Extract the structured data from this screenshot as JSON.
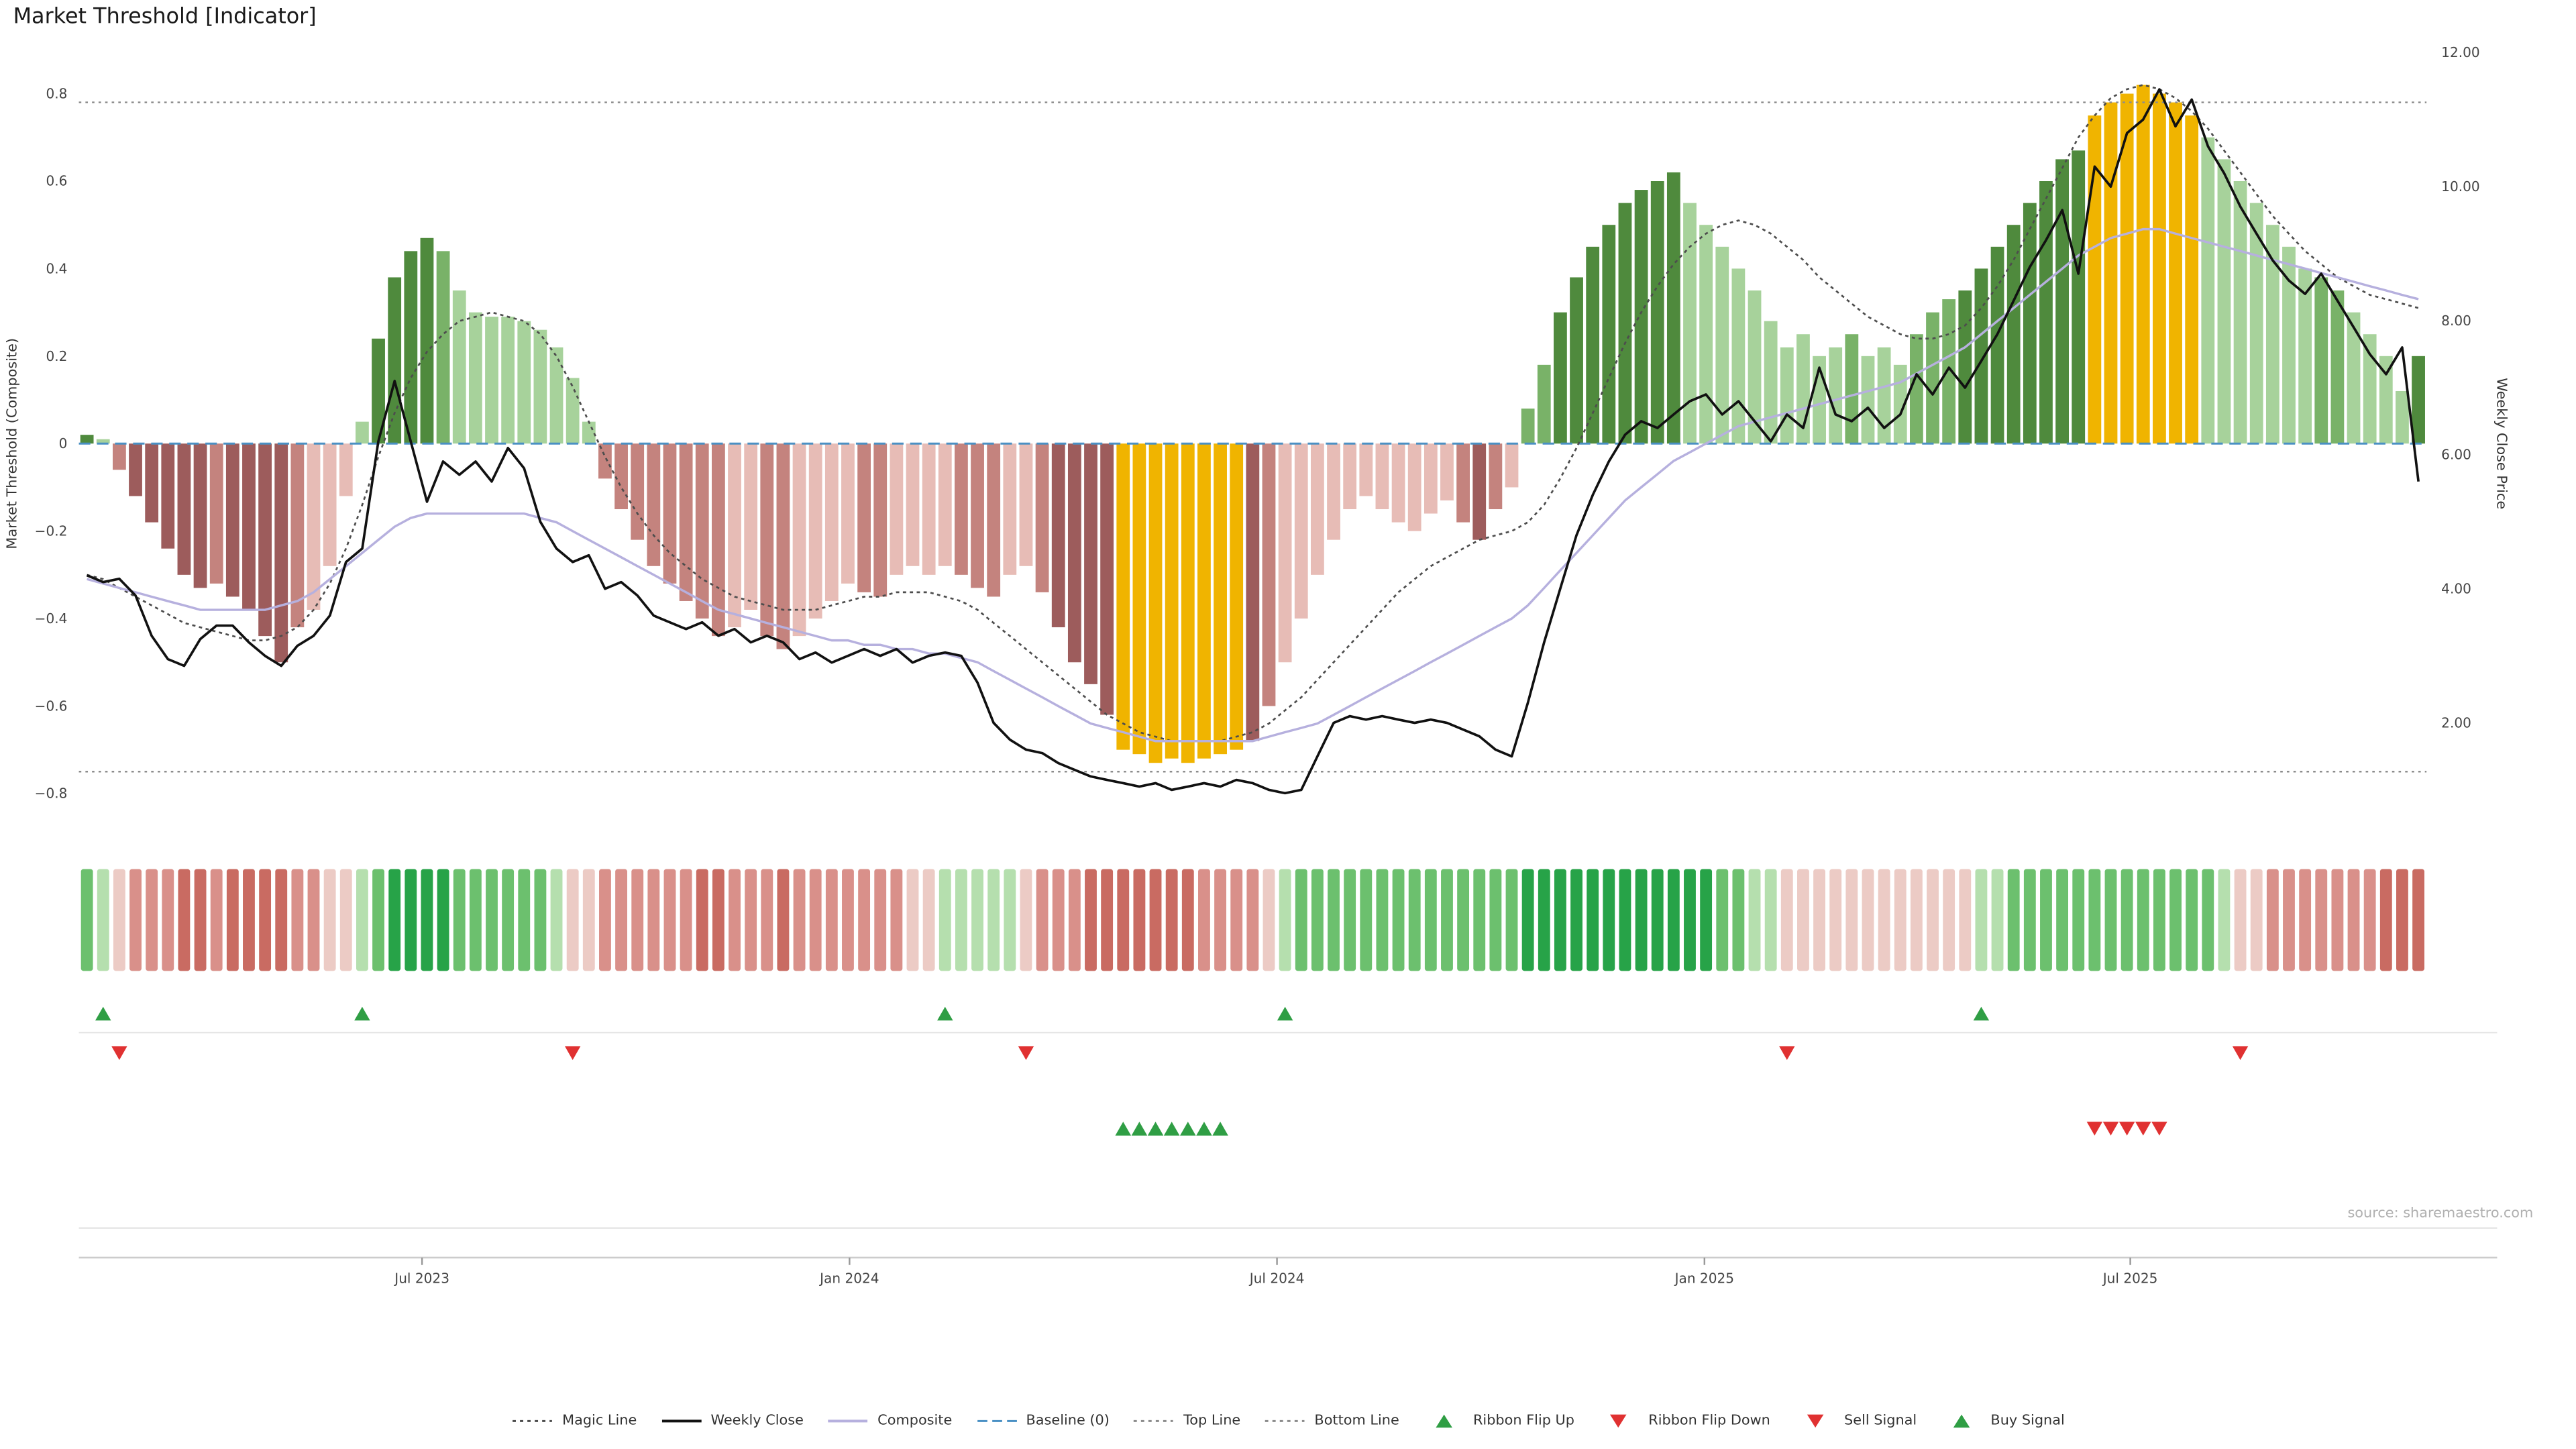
{
  "title": "Market Threshold [Indicator]",
  "source": "source: sharemaestro.com",
  "axes": {
    "left_label": "Market Threshold (Composite)",
    "right_label": "Weekly Close Price",
    "left_ticks": [
      {
        "label": "0.8",
        "value": 0.8
      },
      {
        "label": "0.6",
        "value": 0.6
      },
      {
        "label": "0.4",
        "value": 0.4
      },
      {
        "label": "0.2",
        "value": 0.2
      },
      {
        "label": "0",
        "value": 0
      },
      {
        "label": "−0.2",
        "value": -0.2
      },
      {
        "label": "−0.4",
        "value": -0.4
      },
      {
        "label": "−0.6",
        "value": -0.6
      },
      {
        "label": "−0.8",
        "value": -0.8
      }
    ],
    "right_ticks": [
      {
        "label": "12.00",
        "value": 12
      },
      {
        "label": "10.00",
        "value": 10
      },
      {
        "label": "8.00",
        "value": 8
      },
      {
        "label": "6.00",
        "value": 6
      },
      {
        "label": "4.00",
        "value": 4
      },
      {
        "label": "2.00",
        "value": 2
      }
    ],
    "x_ticks": [
      {
        "label": "Jul 2023",
        "index": 20.7
      },
      {
        "label": "Jan 2024",
        "index": 47.1
      },
      {
        "label": "Jul 2024",
        "index": 73.5
      },
      {
        "label": "Jan 2025",
        "index": 99.9
      },
      {
        "label": "Jul 2025",
        "index": 126.2
      }
    ]
  },
  "chart_data": {
    "type": "bar",
    "title": "Market Threshold [Indicator]",
    "ylim_left": [
      -0.9,
      0.91
    ],
    "ylim_right": [
      0.2,
      12.1
    ],
    "reference_lines": {
      "baseline": 0,
      "top_line": 0.78,
      "bottom_line": -0.75
    },
    "threshold_bars": {
      "name": "Market Threshold (Composite)",
      "axis": "left",
      "values": [
        0.02,
        0.01,
        -0.06,
        -0.12,
        -0.18,
        -0.24,
        -0.3,
        -0.33,
        -0.32,
        -0.35,
        -0.38,
        -0.44,
        -0.5,
        -0.42,
        -0.38,
        -0.28,
        -0.12,
        0.05,
        0.24,
        0.38,
        0.44,
        0.47,
        0.44,
        0.35,
        0.3,
        0.29,
        0.29,
        0.28,
        0.26,
        0.22,
        0.15,
        0.05,
        -0.08,
        -0.15,
        -0.22,
        -0.28,
        -0.32,
        -0.36,
        -0.4,
        -0.44,
        -0.42,
        -0.38,
        -0.44,
        -0.47,
        -0.44,
        -0.4,
        -0.36,
        -0.32,
        -0.34,
        -0.35,
        -0.3,
        -0.28,
        -0.3,
        -0.28,
        -0.3,
        -0.33,
        -0.35,
        -0.3,
        -0.28,
        -0.34,
        -0.42,
        -0.5,
        -0.55,
        -0.62,
        -0.7,
        -0.71,
        -0.73,
        -0.72,
        -0.73,
        -0.72,
        -0.71,
        -0.7,
        -0.68,
        -0.6,
        -0.5,
        -0.4,
        -0.3,
        -0.22,
        -0.15,
        -0.12,
        -0.15,
        -0.18,
        -0.2,
        -0.16,
        -0.13,
        -0.18,
        -0.22,
        -0.15,
        -0.1,
        0.08,
        0.18,
        0.3,
        0.38,
        0.45,
        0.5,
        0.55,
        0.58,
        0.6,
        0.62,
        0.55,
        0.5,
        0.45,
        0.4,
        0.35,
        0.28,
        0.22,
        0.25,
        0.2,
        0.22,
        0.25,
        0.2,
        0.22,
        0.18,
        0.25,
        0.3,
        0.33,
        0.35,
        0.4,
        0.45,
        0.5,
        0.55,
        0.6,
        0.65,
        0.67,
        0.75,
        0.78,
        0.8,
        0.82,
        0.8,
        0.78,
        0.75,
        0.7,
        0.65,
        0.6,
        0.55,
        0.5,
        0.45,
        0.4,
        0.38,
        0.35,
        0.3,
        0.25,
        0.2,
        0.12,
        0.2
      ],
      "colors": [
        "dg",
        "lg",
        "mr",
        "dr",
        "dr",
        "dr",
        "dr",
        "dr",
        "mr",
        "dr",
        "dr",
        "dr",
        "dr",
        "mr",
        "lr",
        "lr",
        "lr",
        "lg",
        "dg",
        "dg",
        "dg",
        "dg",
        "mg",
        "lg",
        "lg",
        "lg",
        "lg",
        "lg",
        "lg",
        "lg",
        "lg",
        "lg",
        "mr",
        "mr",
        "mr",
        "mr",
        "mr",
        "mr",
        "mr",
        "mr",
        "lr",
        "lr",
        "mr",
        "mr",
        "lr",
        "lr",
        "lr",
        "lr",
        "mr",
        "mr",
        "lr",
        "lr",
        "lr",
        "lr",
        "mr",
        "mr",
        "mr",
        "lr",
        "lr",
        "mr",
        "dr",
        "dr",
        "dr",
        "dr",
        "au",
        "au",
        "au",
        "au",
        "au",
        "au",
        "au",
        "au",
        "dr",
        "mr",
        "lr",
        "lr",
        "lr",
        "lr",
        "lr",
        "lr",
        "lr",
        "lr",
        "lr",
        "lr",
        "lr",
        "mr",
        "dr",
        "mr",
        "lr",
        "mg",
        "mg",
        "dg",
        "dg",
        "dg",
        "dg",
        "dg",
        "dg",
        "dg",
        "dg",
        "lg",
        "lg",
        "lg",
        "lg",
        "lg",
        "lg",
        "lg",
        "lg",
        "lg",
        "lg",
        "mg",
        "lg",
        "lg",
        "lg",
        "mg",
        "mg",
        "mg",
        "dg",
        "dg",
        "dg",
        "dg",
        "dg",
        "dg",
        "dg",
        "dg",
        "au",
        "au",
        "au",
        "au",
        "au",
        "au",
        "au",
        "lg",
        "lg",
        "lg",
        "lg",
        "lg",
        "lg",
        "lg",
        "mg",
        "mg",
        "lg",
        "lg",
        "lg",
        "lg",
        "dg"
      ]
    },
    "weekly_close": [
      4.2,
      4.1,
      4.15,
      3.9,
      3.3,
      2.95,
      2.85,
      3.25,
      3.45,
      3.45,
      3.2,
      3.0,
      2.85,
      3.15,
      3.3,
      3.6,
      4.4,
      4.6,
      6.2,
      7.1,
      6.2,
      5.3,
      5.9,
      5.7,
      5.9,
      5.6,
      6.1,
      5.8,
      5.0,
      4.6,
      4.4,
      4.5,
      4.0,
      4.1,
      3.9,
      3.6,
      3.5,
      3.4,
      3.5,
      3.3,
      3.4,
      3.2,
      3.3,
      3.2,
      2.95,
      3.05,
      2.9,
      3.0,
      3.1,
      3.0,
      3.1,
      2.9,
      3.0,
      3.05,
      3.0,
      2.6,
      2.0,
      1.75,
      1.6,
      1.55,
      1.4,
      1.3,
      1.2,
      1.15,
      1.1,
      1.05,
      1.1,
      1.0,
      1.05,
      1.1,
      1.05,
      1.15,
      1.1,
      1.0,
      0.95,
      1.0,
      1.5,
      2.0,
      2.1,
      2.05,
      2.1,
      2.05,
      2.0,
      2.05,
      2.0,
      1.9,
      1.8,
      1.6,
      1.5,
      2.3,
      3.2,
      4.0,
      4.8,
      5.4,
      5.9,
      6.3,
      6.5,
      6.4,
      6.6,
      6.8,
      6.9,
      6.6,
      6.8,
      6.5,
      6.2,
      6.6,
      6.4,
      7.3,
      6.6,
      6.5,
      6.7,
      6.4,
      6.6,
      7.2,
      6.9,
      7.3,
      7.0,
      7.4,
      7.8,
      8.3,
      8.8,
      9.2,
      9.65,
      8.7,
      10.3,
      10.0,
      10.8,
      11.0,
      11.45,
      10.9,
      11.3,
      10.6,
      10.2,
      9.7,
      9.3,
      8.9,
      8.6,
      8.4,
      8.7,
      8.3,
      7.9,
      7.5,
      7.2,
      7.6,
      5.6
    ],
    "composite_line": [
      -0.31,
      -0.32,
      -0.33,
      -0.34,
      -0.35,
      -0.36,
      -0.37,
      -0.38,
      -0.38,
      -0.38,
      -0.38,
      -0.38,
      -0.37,
      -0.36,
      -0.34,
      -0.31,
      -0.28,
      -0.25,
      -0.22,
      -0.19,
      -0.17,
      -0.16,
      -0.16,
      -0.16,
      -0.16,
      -0.16,
      -0.16,
      -0.16,
      -0.17,
      -0.18,
      -0.2,
      -0.22,
      -0.24,
      -0.26,
      -0.28,
      -0.3,
      -0.32,
      -0.34,
      -0.36,
      -0.38,
      -0.39,
      -0.4,
      -0.41,
      -0.42,
      -0.43,
      -0.44,
      -0.45,
      -0.45,
      -0.46,
      -0.46,
      -0.47,
      -0.47,
      -0.48,
      -0.48,
      -0.49,
      -0.5,
      -0.52,
      -0.54,
      -0.56,
      -0.58,
      -0.6,
      -0.62,
      -0.64,
      -0.65,
      -0.66,
      -0.67,
      -0.68,
      -0.68,
      -0.68,
      -0.68,
      -0.68,
      -0.68,
      -0.68,
      -0.67,
      -0.66,
      -0.65,
      -0.64,
      -0.62,
      -0.6,
      -0.58,
      -0.56,
      -0.54,
      -0.52,
      -0.5,
      -0.48,
      -0.46,
      -0.44,
      -0.42,
      -0.4,
      -0.37,
      -0.33,
      -0.29,
      -0.25,
      -0.21,
      -0.17,
      -0.13,
      -0.1,
      -0.07,
      -0.04,
      -0.02,
      0.0,
      0.02,
      0.04,
      0.05,
      0.06,
      0.07,
      0.08,
      0.09,
      0.1,
      0.11,
      0.12,
      0.13,
      0.14,
      0.16,
      0.18,
      0.2,
      0.22,
      0.25,
      0.28,
      0.31,
      0.34,
      0.37,
      0.4,
      0.43,
      0.45,
      0.47,
      0.48,
      0.49,
      0.49,
      0.48,
      0.47,
      0.46,
      0.45,
      0.44,
      0.43,
      0.42,
      0.41,
      0.4,
      0.39,
      0.38,
      0.37,
      0.36,
      0.35,
      0.34,
      0.33
    ],
    "magic_line": [
      -0.3,
      -0.31,
      -0.33,
      -0.35,
      -0.37,
      -0.39,
      -0.41,
      -0.42,
      -0.43,
      -0.44,
      -0.45,
      -0.45,
      -0.44,
      -0.42,
      -0.38,
      -0.32,
      -0.24,
      -0.14,
      -0.03,
      0.07,
      0.15,
      0.21,
      0.25,
      0.28,
      0.29,
      0.3,
      0.29,
      0.28,
      0.25,
      0.2,
      0.13,
      0.05,
      -0.03,
      -0.1,
      -0.16,
      -0.21,
      -0.25,
      -0.28,
      -0.31,
      -0.33,
      -0.35,
      -0.36,
      -0.37,
      -0.38,
      -0.38,
      -0.38,
      -0.37,
      -0.36,
      -0.35,
      -0.35,
      -0.34,
      -0.34,
      -0.34,
      -0.35,
      -0.36,
      -0.38,
      -0.41,
      -0.44,
      -0.47,
      -0.5,
      -0.53,
      -0.56,
      -0.59,
      -0.62,
      -0.64,
      -0.66,
      -0.67,
      -0.68,
      -0.68,
      -0.68,
      -0.68,
      -0.67,
      -0.66,
      -0.64,
      -0.61,
      -0.58,
      -0.54,
      -0.5,
      -0.46,
      -0.42,
      -0.38,
      -0.34,
      -0.31,
      -0.28,
      -0.26,
      -0.24,
      -0.22,
      -0.21,
      -0.2,
      -0.18,
      -0.14,
      -0.08,
      -0.01,
      0.07,
      0.15,
      0.23,
      0.3,
      0.36,
      0.41,
      0.45,
      0.48,
      0.5,
      0.51,
      0.5,
      0.48,
      0.45,
      0.42,
      0.38,
      0.35,
      0.32,
      0.29,
      0.27,
      0.25,
      0.24,
      0.24,
      0.25,
      0.27,
      0.31,
      0.36,
      0.42,
      0.49,
      0.56,
      0.63,
      0.7,
      0.75,
      0.79,
      0.81,
      0.82,
      0.81,
      0.79,
      0.76,
      0.72,
      0.67,
      0.62,
      0.57,
      0.52,
      0.48,
      0.44,
      0.41,
      0.38,
      0.36,
      0.34,
      0.33,
      0.32,
      0.31
    ],
    "ribbon": [
      "g2",
      "g1",
      "r1",
      "r2",
      "r2",
      "r2",
      "r3",
      "r3",
      "r2",
      "r3",
      "r3",
      "r3",
      "r3",
      "r2",
      "r2",
      "r1",
      "r1",
      "g1",
      "g2",
      "g3",
      "g3",
      "g3",
      "g3",
      "g2",
      "g2",
      "g2",
      "g2",
      "g2",
      "g2",
      "g1",
      "r1",
      "r1",
      "r2",
      "r2",
      "r2",
      "r2",
      "r2",
      "r2",
      "r3",
      "r3",
      "r2",
      "r2",
      "r2",
      "r3",
      "r2",
      "r2",
      "r2",
      "r2",
      "r2",
      "r2",
      "r2",
      "r1",
      "r1",
      "g1",
      "g1",
      "g1",
      "g1",
      "g1",
      "r1",
      "r2",
      "r2",
      "r2",
      "r3",
      "r3",
      "r3",
      "r3",
      "r3",
      "r3",
      "r3",
      "r2",
      "r2",
      "r2",
      "r2",
      "r1",
      "g1",
      "g2",
      "g2",
      "g2",
      "g2",
      "g2",
      "g2",
      "g2",
      "g2",
      "g2",
      "g2",
      "g2",
      "g2",
      "g2",
      "g2",
      "g3",
      "g3",
      "g3",
      "g3",
      "g3",
      "g3",
      "g3",
      "g3",
      "g3",
      "g3",
      "g3",
      "g3",
      "g2",
      "g2",
      "g1",
      "g1",
      "r1",
      "r1",
      "r1",
      "r1",
      "r1",
      "r1",
      "r1",
      "r1",
      "r1",
      "r1",
      "r1",
      "r1",
      "g1",
      "g1",
      "g2",
      "g2",
      "g2",
      "g2",
      "g2",
      "g2",
      "g2",
      "g2",
      "g2",
      "g2",
      "g2",
      "g2",
      "g2",
      "g1",
      "r1",
      "r1",
      "r2",
      "r2",
      "r2",
      "r2",
      "r2",
      "r2",
      "r2",
      "r3",
      "r3",
      "r3"
    ],
    "signals": {
      "ribbon_flip_up": [
        1,
        17,
        53,
        74,
        117
      ],
      "ribbon_flip_down": [
        2,
        30,
        58,
        105,
        133
      ],
      "buy_cluster": [
        64,
        65,
        66,
        67,
        68,
        69,
        70
      ],
      "sell_cluster": [
        124,
        125,
        126,
        127,
        128
      ]
    }
  },
  "colors": {
    "bars": {
      "dg": "#4f8a3d",
      "mg": "#79b268",
      "lg": "#a7d29b",
      "dr": "#9d5c5c",
      "mr": "#c4837e",
      "lr": "#e7bcb6",
      "au": "#f0b400"
    },
    "ribbon": {
      "g3": "#27a348",
      "g2": "#6cc06e",
      "g1": "#b5dfae",
      "r3": "#c96b62",
      "r2": "#d9908a",
      "r1": "#eccbc5"
    },
    "lines": {
      "magic": "#4d4d4d",
      "weekly_close": "#111111",
      "composite": "#b6b0de",
      "baseline": "#4a90c4",
      "top_bottom": "#8c8c8c"
    },
    "signals": {
      "buy": "#2f9e44",
      "sell": "#e03131"
    }
  },
  "legend": [
    {
      "label": "Magic Line",
      "marker": "dotted",
      "color": "#4d4d4d"
    },
    {
      "label": "Weekly Close",
      "marker": "solid",
      "color": "#111111"
    },
    {
      "label": "Composite",
      "marker": "solid",
      "color": "#b6b0de"
    },
    {
      "label": "Baseline (0)",
      "marker": "dashed",
      "color": "#4a90c4"
    },
    {
      "label": "Top Line",
      "marker": "dotted",
      "color": "#8c8c8c"
    },
    {
      "label": "Bottom Line",
      "marker": "dotted",
      "color": "#8c8c8c"
    },
    {
      "label": "Ribbon Flip Up",
      "marker": "tri-up",
      "color": "#2f9e44"
    },
    {
      "label": "Ribbon Flip Down",
      "marker": "tri-down",
      "color": "#e03131"
    },
    {
      "label": "Sell Signal",
      "marker": "tri-down",
      "color": "#e03131"
    },
    {
      "label": "Buy Signal",
      "marker": "tri-up",
      "color": "#2f9e44"
    }
  ]
}
